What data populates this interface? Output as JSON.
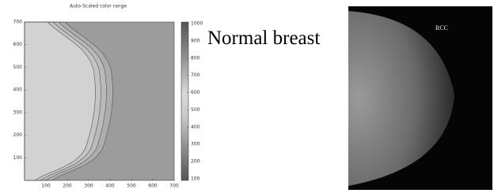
{
  "figure": {
    "plot": {
      "title": "Auto-Scaled color range",
      "xlim": [
        0,
        700
      ],
      "xticks": [
        100,
        200,
        300,
        400,
        500,
        600,
        700
      ],
      "ylim": [
        0,
        700
      ],
      "yticks": [
        100,
        200,
        300,
        400,
        500,
        600,
        700
      ],
      "colorbar": {
        "lim": [
          90,
          1010
        ],
        "ticks": [
          100,
          200,
          300,
          400,
          500,
          600,
          700,
          800,
          900,
          1000
        ]
      }
    },
    "caption": "Normal breast",
    "image": {
      "label": "RCC"
    }
  }
}
